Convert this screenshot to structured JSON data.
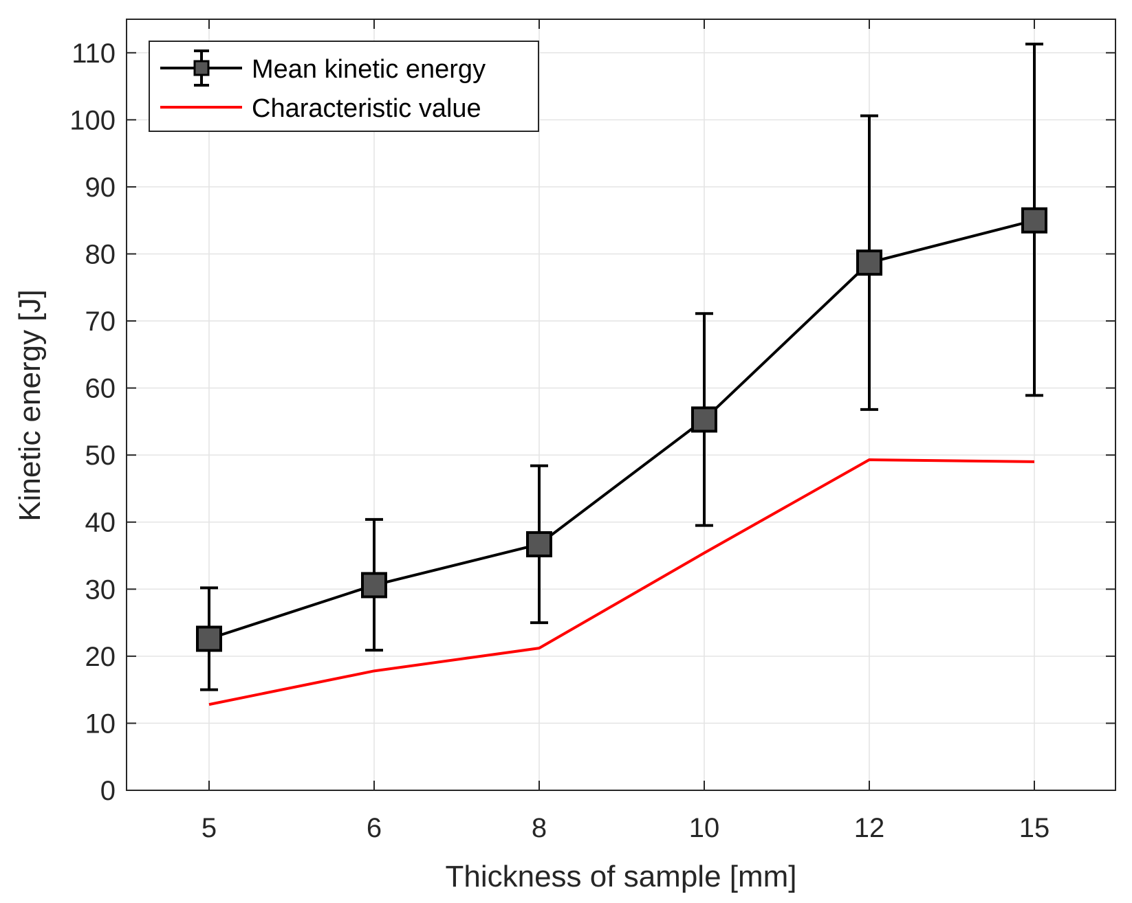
{
  "chart_data": {
    "type": "line",
    "categories": [
      "5",
      "6",
      "8",
      "10",
      "12",
      "15"
    ],
    "series": [
      {
        "name": "Mean kinetic energy",
        "values": [
          22.6,
          30.6,
          36.7,
          55.3,
          78.7,
          85.0
        ],
        "error_upper": [
          30.2,
          40.4,
          48.4,
          71.1,
          100.6,
          111.3
        ],
        "error_lower": [
          15.0,
          20.9,
          25.0,
          39.5,
          56.8,
          58.9
        ],
        "color": "#000000",
        "marker": "square",
        "marker_fill": "#555555"
      },
      {
        "name": "Characteristic value",
        "values": [
          12.8,
          17.8,
          21.2,
          35.4,
          49.3,
          49.0
        ],
        "color": "#ff0000"
      }
    ],
    "title": "",
    "xlabel": "Thickness of sample [mm]",
    "ylabel": "Kinetic energy [J]",
    "ylim": [
      0,
      115
    ],
    "yticks": [
      0,
      10,
      20,
      30,
      40,
      50,
      60,
      70,
      80,
      90,
      100,
      110
    ],
    "grid": true,
    "legend": "top-left"
  }
}
